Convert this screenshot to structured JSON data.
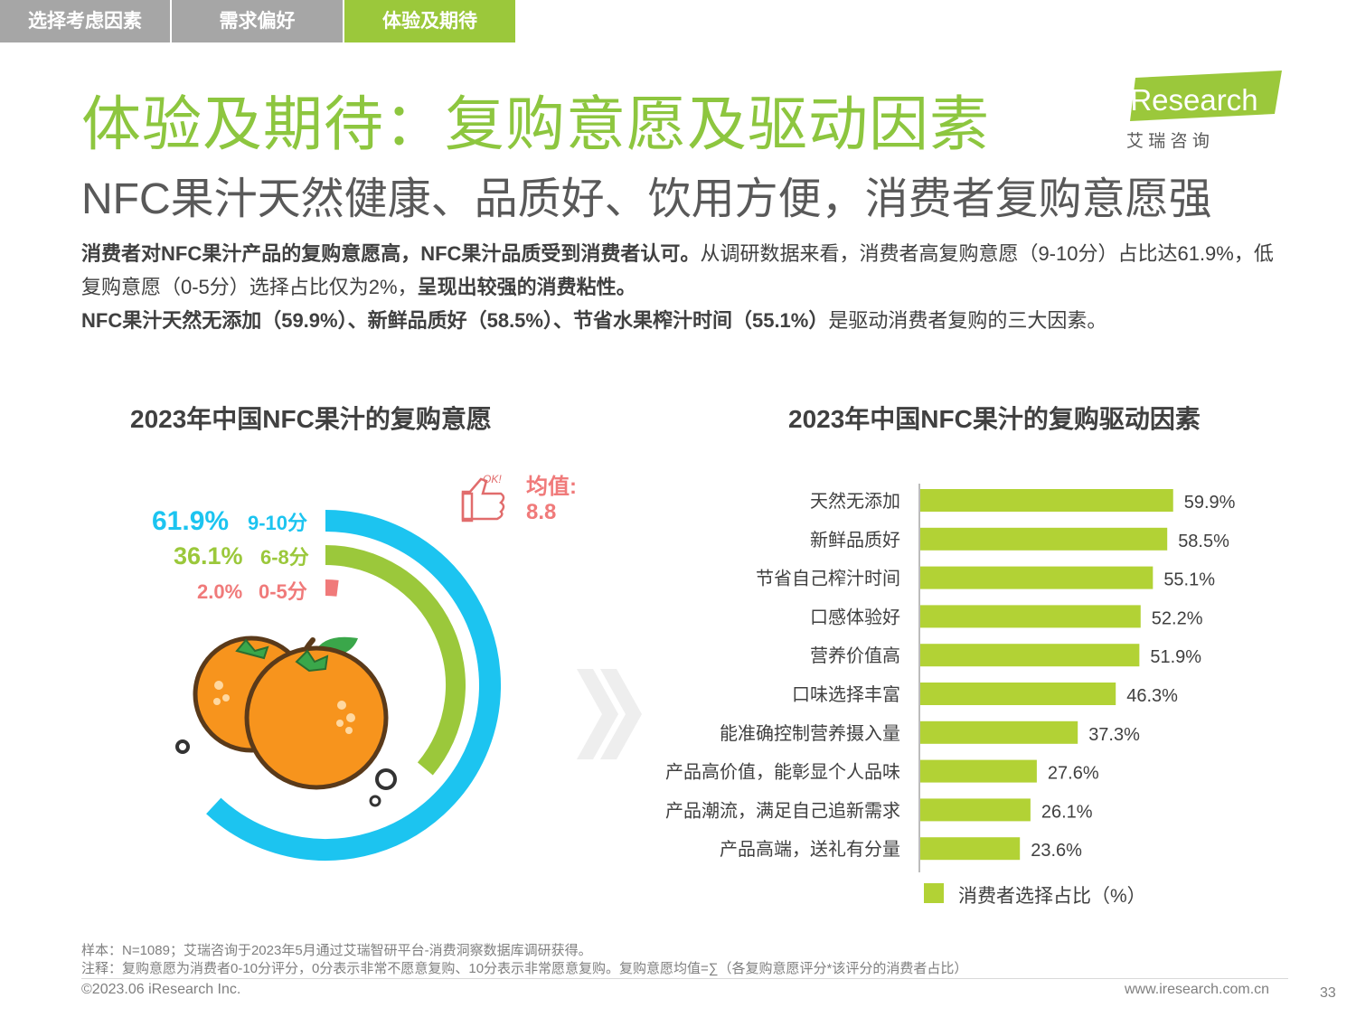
{
  "tabs": [
    "选择考虑因素",
    "需求偏好",
    "体验及期待"
  ],
  "title": "体验及期待：复购意愿及驱动因素",
  "subtitle": "NFC果汁天然健康、品质好、饮用方便，消费者复购意愿强",
  "logo": {
    "text": "iResearch",
    "sub": "艾  瑞  咨  询"
  },
  "paragraph": {
    "p1_bold": "消费者对NFC果汁产品的复购意愿高，NFC果汁品质受到消费者认可。",
    "p1_normal": "从调研数据来看，消费者高复购意愿（9-10分）占比达61.9%，低复购意愿（0-5分）选择占比仅为2%，",
    "p1_bold2": "呈现出较强的消费粘性。",
    "p2_bold": "NFC果汁天然无添加（59.9%）、新鲜品质好（58.5%）、节省水果榨汁时间（55.1%）",
    "p2_normal": "是驱动消费者复购的三大因素。"
  },
  "colors": {
    "green": "#9bc83b",
    "bar": "#b2d235",
    "cyan": "#1cc4f0",
    "red": "#f07a7a",
    "orange": "#f7941d"
  },
  "chart_data": [
    {
      "type": "pie",
      "title": "2023年中国NFC果汁的复购意愿",
      "categories": [
        "9-10分",
        "6-8分",
        "0-5分"
      ],
      "values": [
        61.9,
        36.1,
        2.0
      ],
      "value_labels": [
        "61.9%",
        "36.1%",
        "2.0%"
      ],
      "average_label": "均值:",
      "average_value": "8.8"
    },
    {
      "type": "bar",
      "orientation": "horizontal",
      "title": "2023年中国NFC果汁的复购驱动因素",
      "categories": [
        "天然无添加",
        "新鲜品质好",
        "节省自己榨汁时间",
        "口感体验好",
        "营养价值高",
        "口味选择丰富",
        "能准确控制营养摄入量",
        "产品高价值，能彰显个人品味",
        "产品潮流，满足自己追新需求",
        "产品高端，送礼有分量"
      ],
      "series": [
        {
          "name": "消费者选择占比（%）",
          "values": [
            59.9,
            58.5,
            55.1,
            52.2,
            51.9,
            46.3,
            37.3,
            27.6,
            26.1,
            23.6
          ]
        }
      ],
      "xlim": [
        0,
        100
      ]
    }
  ],
  "footer": {
    "sample": "样本：N=1089；艾瑞咨询于2023年5月通过艾瑞智研平台-消费洞察数据库调研获得。",
    "note": "注释：复购意愿为消费者0-10分评分，0分表示非常不愿意复购、10分表示非常愿意复购。复购意愿均值=∑（各复购意愿评分*该评分的消费者占比）",
    "copyright": "©2023.06 iResearch Inc.",
    "website": "www.iresearch.com.cn",
    "page": "33"
  }
}
